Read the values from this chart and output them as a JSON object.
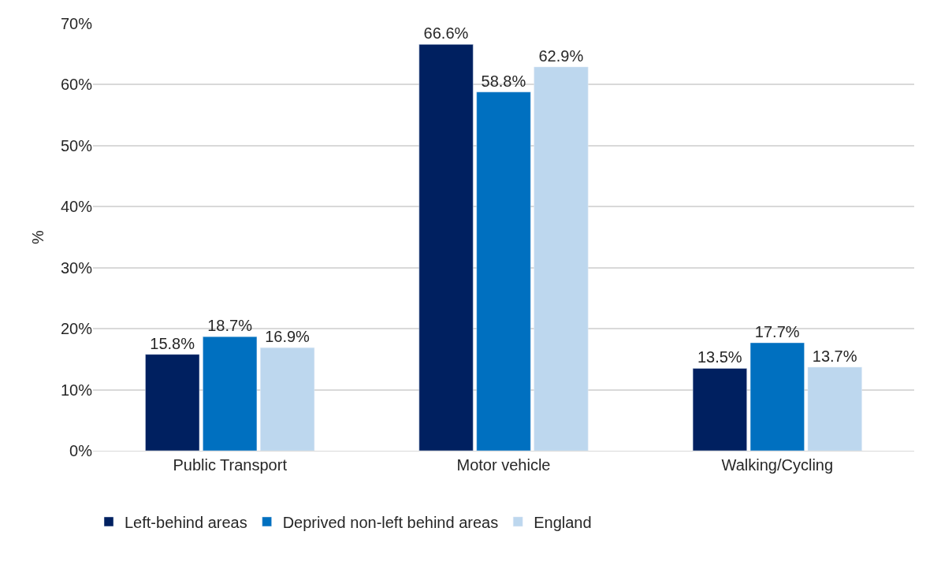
{
  "chart_data": {
    "type": "bar",
    "ylabel": "%",
    "categories": [
      "Public Transport",
      "Motor vehicle",
      "Walking/Cycling"
    ],
    "series": [
      {
        "name": "Left-behind areas",
        "color": "#002060",
        "values": [
          15.8,
          66.6,
          13.5
        ],
        "value_labels": [
          "15.8%",
          "66.6%",
          "13.5%"
        ]
      },
      {
        "name": "Deprived non-left behind areas",
        "color": "#0070c0",
        "values": [
          18.7,
          58.8,
          17.7
        ],
        "value_labels": [
          "18.7%",
          "58.8%",
          "17.7%"
        ]
      },
      {
        "name": "England",
        "color": "#bdd7ee",
        "values": [
          16.9,
          62.9,
          13.7
        ],
        "value_labels": [
          "16.9%",
          "62.9%",
          "13.7%"
        ]
      }
    ],
    "ylim": [
      0,
      70
    ],
    "yticks": [
      {
        "value": 0,
        "label": "0%"
      },
      {
        "value": 10,
        "label": "10%"
      },
      {
        "value": 20,
        "label": "20%"
      },
      {
        "value": 30,
        "label": "30%"
      },
      {
        "value": 40,
        "label": "40%"
      },
      {
        "value": 50,
        "label": "50%"
      },
      {
        "value": 60,
        "label": "60%"
      },
      {
        "value": 70,
        "label": "70%"
      }
    ],
    "grid": "y",
    "legend": "bottom"
  }
}
